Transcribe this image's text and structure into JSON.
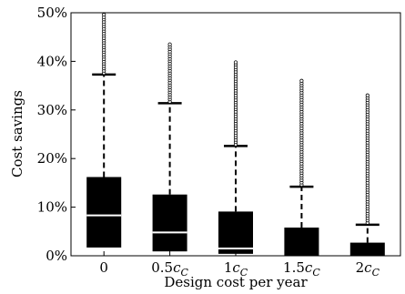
{
  "chart_data": {
    "type": "box",
    "xlabel": "Design cost per year",
    "ylabel": "Cost savings",
    "ylim": [
      0,
      50
    ],
    "yticks": [
      "0%",
      "10%",
      "20%",
      "30%",
      "40%",
      "50%"
    ],
    "categories": [
      {
        "coef": "0",
        "sym": ""
      },
      {
        "coef": "0.5",
        "sym": "c"
      },
      {
        "coef": "1",
        "sym": "c"
      },
      {
        "coef": "1.5",
        "sym": "c"
      },
      {
        "coef": "2",
        "sym": "c"
      }
    ],
    "category_subscript": "C",
    "boxes": [
      {
        "whisker_low": 0,
        "q1": 1.7,
        "median": 8.3,
        "q3": 16.2,
        "whisker_high": 37.3,
        "outlier_min": 37.6,
        "outlier_max": 49.6
      },
      {
        "whisker_low": 0,
        "q1": 0.9,
        "median": 4.8,
        "q3": 12.6,
        "whisker_high": 31.4,
        "outlier_min": 31.7,
        "outlier_max": 43.5
      },
      {
        "whisker_low": 0,
        "q1": 0.4,
        "median": 1.5,
        "q3": 9.1,
        "whisker_high": 22.6,
        "outlier_min": 22.9,
        "outlier_max": 39.8
      },
      {
        "whisker_low": 0,
        "q1": 0,
        "median": 0,
        "q3": 5.8,
        "whisker_high": 14.2,
        "outlier_min": 14.6,
        "outlier_max": 36.0
      },
      {
        "whisker_low": 0,
        "q1": 0,
        "median": 0,
        "q3": 2.7,
        "whisker_high": 6.4,
        "outlier_min": 6.8,
        "outlier_max": 33.0
      }
    ],
    "grid": false,
    "box_color": "#000000",
    "median_color": "#ffffff"
  }
}
